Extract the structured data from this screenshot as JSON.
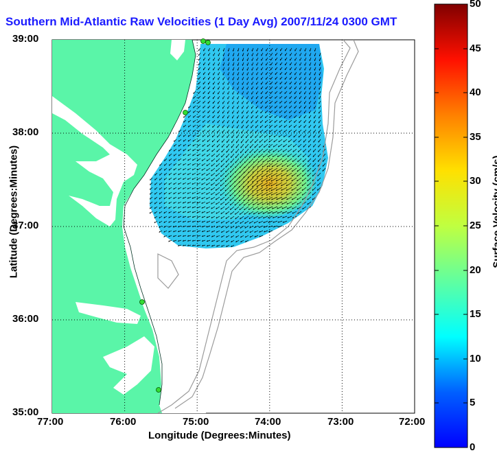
{
  "title": "Southern Mid-Atlantic Raw Velocities (1 Day Avg) 2007/11/24 0300 GMT",
  "xaxis": {
    "label": "Longitude (Degrees:Minutes)",
    "ticks": [
      "77:00",
      "76:00",
      "75:00",
      "74:00",
      "73:00",
      "72:00"
    ]
  },
  "yaxis": {
    "label": "Latitude (Degrees:Minutes)",
    "ticks": [
      "39:00",
      "38:00",
      "37:00",
      "36:00",
      "35:00"
    ]
  },
  "colorbar": {
    "label": "Surface Velocity (cm/s)",
    "ticks": [
      "50",
      "45",
      "40",
      "35",
      "30",
      "25",
      "20",
      "15",
      "10",
      "5",
      "0"
    ],
    "min": 0,
    "max": 50
  },
  "colors": {
    "land": "#5af5a8",
    "title": "#1a1aff",
    "grid": "#000000",
    "bathymetry": "#9a9a9a",
    "station": "#33dd33"
  }
}
